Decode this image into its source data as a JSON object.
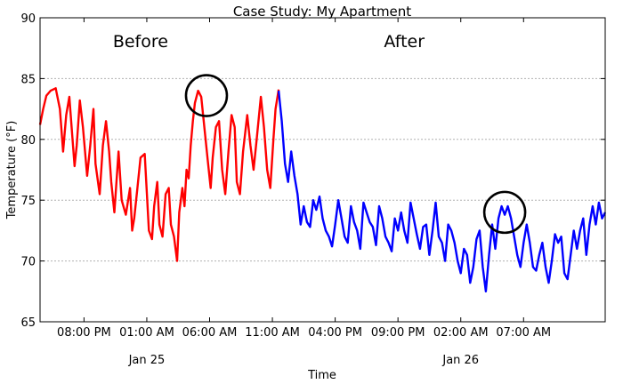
{
  "chart_data": {
    "type": "line",
    "title": "Case Study: My Apartment",
    "xlabel": "Time",
    "ylabel": "Temperature (°F)",
    "ylim": [
      65,
      90
    ],
    "yticks": [
      65,
      70,
      75,
      80,
      85,
      90
    ],
    "xlim": [
      "2014-01-24 16:30",
      "2014-01-26 13:30"
    ],
    "xticks": [
      {
        "t": "2014-01-24 20:00",
        "label": "08:00 PM"
      },
      {
        "t": "2014-01-25 01:00",
        "label": "01:00 AM"
      },
      {
        "t": "2014-01-25 06:00",
        "label": "06:00 AM"
      },
      {
        "t": "2014-01-25 11:00",
        "label": "11:00 AM"
      },
      {
        "t": "2014-01-25 16:00",
        "label": "04:00 PM"
      },
      {
        "t": "2014-01-25 21:00",
        "label": "09:00 PM"
      },
      {
        "t": "2014-01-26 02:00",
        "label": "02:00 AM"
      },
      {
        "t": "2014-01-26 07:00",
        "label": "07:00 AM"
      }
    ],
    "date_labels": [
      {
        "t": "2014-01-25 01:00",
        "label": "Jan 25"
      },
      {
        "t": "2014-01-26 02:00",
        "label": "Jan 26"
      }
    ],
    "grid": "horizontal dotted",
    "annotations": [
      {
        "text": "Before",
        "t": "2014-01-25 00:30",
        "y": 87.6
      },
      {
        "text": "After",
        "t": "2014-01-25 21:30",
        "y": 87.6
      }
    ],
    "highlights": [
      {
        "t": "2014-01-25 05:45",
        "y": 83.6
      },
      {
        "t": "2014-01-26 05:30",
        "y": 74.0
      }
    ],
    "series": [
      {
        "color": "#ff0000",
        "x": [
          "2014-01-24 16:30",
          "2014-01-24 16:45",
          "2014-01-24 17:00",
          "2014-01-24 17:20",
          "2014-01-24 17:45",
          "2014-01-24 18:05",
          "2014-01-24 18:20",
          "2014-01-24 18:35",
          "2014-01-24 18:50",
          "2014-01-24 19:05",
          "2014-01-24 19:15",
          "2014-01-24 19:25",
          "2014-01-24 19:40",
          "2014-01-24 19:55",
          "2014-01-24 20:15",
          "2014-01-24 20:30",
          "2014-01-24 20:45",
          "2014-01-24 20:55",
          "2014-01-24 21:15",
          "2014-01-24 21:30",
          "2014-01-24 21:45",
          "2014-01-24 22:00",
          "2014-01-24 22:10",
          "2014-01-24 22:25",
          "2014-01-24 22:45",
          "2014-01-24 23:00",
          "2014-01-24 23:20",
          "2014-01-24 23:40",
          "2014-01-24 23:50",
          "2014-01-25 00:00",
          "2014-01-25 00:15",
          "2014-01-25 00:30",
          "2014-01-25 00:50",
          "2014-01-25 01:10",
          "2014-01-25 01:25",
          "2014-01-25 01:35",
          "2014-01-25 01:50",
          "2014-01-25 02:00",
          "2014-01-25 02:15",
          "2014-01-25 02:30",
          "2014-01-25 02:45",
          "2014-01-25 02:55",
          "2014-01-25 03:10",
          "2014-01-25 03:25",
          "2014-01-25 03:35",
          "2014-01-25 03:50",
          "2014-01-25 04:00",
          "2014-01-25 04:10",
          "2014-01-25 04:20",
          "2014-01-25 04:30",
          "2014-01-25 04:40",
          "2014-01-25 04:50",
          "2014-01-25 05:05",
          "2014-01-25 05:20",
          "2014-01-25 05:35",
          "2014-01-25 05:50",
          "2014-01-25 06:05",
          "2014-01-25 06:15",
          "2014-01-25 06:30",
          "2014-01-25 06:45",
          "2014-01-25 07:00",
          "2014-01-25 07:15",
          "2014-01-25 07:30",
          "2014-01-25 07:45",
          "2014-01-25 08:00",
          "2014-01-25 08:10",
          "2014-01-25 08:25",
          "2014-01-25 08:40",
          "2014-01-25 09:00",
          "2014-01-25 09:15",
          "2014-01-25 09:30",
          "2014-01-25 09:45",
          "2014-01-25 10:05",
          "2014-01-25 10:20",
          "2014-01-25 10:35",
          "2014-01-25 10:50",
          "2014-01-25 11:05",
          "2014-01-25 11:15",
          "2014-01-25 11:30"
        ],
        "y": [
          81.2,
          82.5,
          83.6,
          84.0,
          84.2,
          82.5,
          79.0,
          82.0,
          83.5,
          80.0,
          77.8,
          79.5,
          83.2,
          81.0,
          77.0,
          79.5,
          82.5,
          78.0,
          75.5,
          79.5,
          81.5,
          79.0,
          76.5,
          74.0,
          79.0,
          75.0,
          73.8,
          76.0,
          72.5,
          73.5,
          76.0,
          78.5,
          78.8,
          72.5,
          71.8,
          74.5,
          76.5,
          73.0,
          72.0,
          75.5,
          76.0,
          73.0,
          72.0,
          70.0,
          74.0,
          76.0,
          74.5,
          77.5,
          76.8,
          79.5,
          81.5,
          83.0,
          84.0,
          83.5,
          81.0,
          78.5,
          76.0,
          78.5,
          81.0,
          81.5,
          77.5,
          75.5,
          79.0,
          82.0,
          81.0,
          76.5,
          75.5,
          79.0,
          82.0,
          79.5,
          77.5,
          80.0,
          83.5,
          81.0,
          77.5,
          76.0,
          80.0,
          82.5,
          84.1
        ]
      },
      {
        "color": "#0000ff",
        "x": [
          "2014-01-25 11:30",
          "2014-01-25 11:45",
          "2014-01-25 12:00",
          "2014-01-25 12:15",
          "2014-01-25 12:30",
          "2014-01-25 12:45",
          "2014-01-25 13:00",
          "2014-01-25 13:15",
          "2014-01-25 13:30",
          "2014-01-25 13:45",
          "2014-01-25 14:00",
          "2014-01-25 14:15",
          "2014-01-25 14:30",
          "2014-01-25 14:45",
          "2014-01-25 15:00",
          "2014-01-25 15:15",
          "2014-01-25 15:30",
          "2014-01-25 15:45",
          "2014-01-25 16:00",
          "2014-01-25 16:15",
          "2014-01-25 16:30",
          "2014-01-25 16:45",
          "2014-01-25 17:00",
          "2014-01-25 17:15",
          "2014-01-25 17:30",
          "2014-01-25 17:45",
          "2014-01-25 18:00",
          "2014-01-25 18:15",
          "2014-01-25 18:30",
          "2014-01-25 18:45",
          "2014-01-25 19:00",
          "2014-01-25 19:15",
          "2014-01-25 19:30",
          "2014-01-25 19:45",
          "2014-01-25 20:00",
          "2014-01-25 20:15",
          "2014-01-25 20:30",
          "2014-01-25 20:45",
          "2014-01-25 21:00",
          "2014-01-25 21:15",
          "2014-01-25 21:30",
          "2014-01-25 21:45",
          "2014-01-25 22:00",
          "2014-01-25 22:15",
          "2014-01-25 22:30",
          "2014-01-25 22:45",
          "2014-01-25 23:00",
          "2014-01-25 23:15",
          "2014-01-25 23:30",
          "2014-01-25 23:45",
          "2014-01-26 00:00",
          "2014-01-26 00:15",
          "2014-01-26 00:30",
          "2014-01-26 00:45",
          "2014-01-26 01:00",
          "2014-01-26 01:15",
          "2014-01-26 01:30",
          "2014-01-26 01:45",
          "2014-01-26 02:00",
          "2014-01-26 02:15",
          "2014-01-26 02:30",
          "2014-01-26 02:45",
          "2014-01-26 03:00",
          "2014-01-26 03:15",
          "2014-01-26 03:30",
          "2014-01-26 03:45",
          "2014-01-26 04:00",
          "2014-01-26 04:15",
          "2014-01-26 04:30",
          "2014-01-26 04:45",
          "2014-01-26 05:00",
          "2014-01-26 05:15",
          "2014-01-26 05:30",
          "2014-01-26 05:45",
          "2014-01-26 06:00",
          "2014-01-26 06:15",
          "2014-01-26 06:30",
          "2014-01-26 06:45",
          "2014-01-26 07:00",
          "2014-01-26 07:15",
          "2014-01-26 07:30",
          "2014-01-26 07:45",
          "2014-01-26 08:00",
          "2014-01-26 08:15",
          "2014-01-26 08:30",
          "2014-01-26 08:45",
          "2014-01-26 09:00",
          "2014-01-26 09:15",
          "2014-01-26 09:30",
          "2014-01-26 09:45",
          "2014-01-26 10:00",
          "2014-01-26 10:15",
          "2014-01-26 10:30",
          "2014-01-26 10:45",
          "2014-01-26 11:00",
          "2014-01-26 11:15",
          "2014-01-26 11:30",
          "2014-01-26 11:45",
          "2014-01-26 12:00",
          "2014-01-26 12:15",
          "2014-01-26 12:30",
          "2014-01-26 12:45",
          "2014-01-26 13:00",
          "2014-01-26 13:15",
          "2014-01-26 13:30"
        ],
        "y": [
          84.0,
          81.5,
          78.0,
          76.5,
          79.0,
          77.0,
          75.5,
          73.0,
          74.5,
          73.2,
          72.8,
          75.0,
          74.2,
          75.3,
          73.5,
          72.5,
          72.0,
          71.2,
          73.0,
          75.0,
          73.5,
          72.0,
          71.5,
          74.5,
          73.2,
          72.5,
          71.0,
          74.8,
          74.0,
          73.2,
          72.8,
          71.3,
          74.5,
          73.5,
          72.0,
          71.5,
          70.8,
          73.5,
          72.5,
          74.0,
          72.5,
          71.5,
          74.8,
          73.5,
          72.2,
          71.0,
          72.8,
          73.0,
          70.5,
          72.5,
          74.8,
          72.0,
          71.5,
          70.0,
          73.0,
          72.5,
          71.5,
          70.0,
          69.0,
          71.0,
          70.5,
          68.2,
          69.5,
          71.8,
          72.5,
          69.5,
          67.5,
          70.5,
          73.0,
          71.0,
          73.5,
          74.5,
          73.8,
          74.5,
          73.5,
          72.0,
          70.5,
          69.5,
          71.5,
          73.0,
          71.5,
          69.5,
          69.2,
          70.5,
          71.5,
          69.5,
          68.2,
          70.0,
          72.2,
          71.5,
          72.0,
          69.0,
          68.5,
          70.5,
          72.5,
          71.0,
          72.5,
          73.5,
          70.5,
          73.0,
          74.5,
          73.0,
          74.8,
          73.5,
          74.0
        ]
      }
    ]
  }
}
